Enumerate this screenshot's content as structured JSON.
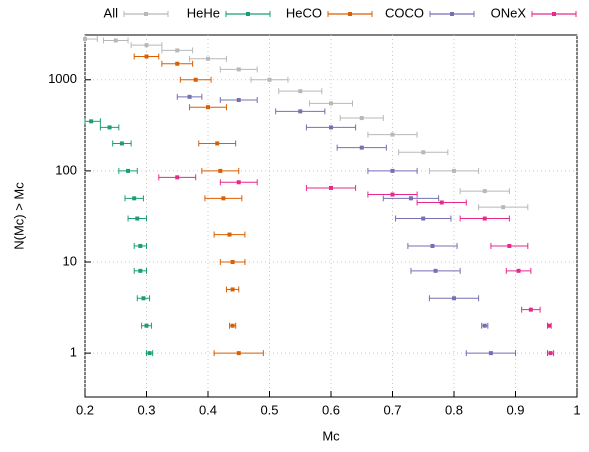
{
  "chart_data": {
    "type": "errorbar-scatter",
    "xlabel": "Mc",
    "ylabel": "N(Mc) > Mc",
    "xlim": [
      0.2,
      1
    ],
    "xticks": [
      0.2,
      0.3,
      0.4,
      0.5,
      0.6,
      0.7,
      0.8,
      0.9,
      1
    ],
    "ylim": [
      0.33,
      3100
    ],
    "yticks": [
      1,
      10,
      100,
      1000
    ],
    "yscale": "log",
    "grid": true,
    "legend": "top",
    "series": [
      {
        "name": "All",
        "color": "#b8b8b8",
        "x": [
          0.2,
          0.25,
          0.3,
          0.35,
          0.4,
          0.45,
          0.5,
          0.55,
          0.6,
          0.65,
          0.7,
          0.75,
          0.8,
          0.85,
          0.88
        ],
        "values": [
          2800,
          2700,
          2400,
          2100,
          1700,
          1300,
          1000,
          750,
          550,
          380,
          250,
          160,
          100,
          60,
          40
        ],
        "xerr": [
          0.02,
          0.02,
          0.025,
          0.025,
          0.03,
          0.03,
          0.03,
          0.035,
          0.035,
          0.035,
          0.04,
          0.04,
          0.04,
          0.04,
          0.04
        ]
      },
      {
        "name": "HeHe",
        "color": "#1b9e77",
        "x": [
          0.21,
          0.24,
          0.26,
          0.27,
          0.28,
          0.285,
          0.29,
          0.29,
          0.295,
          0.3,
          0.305
        ],
        "values": [
          350,
          300,
          200,
          100,
          50,
          30,
          15,
          8,
          4,
          2,
          1
        ],
        "xerr": [
          0.015,
          0.015,
          0.015,
          0.015,
          0.015,
          0.015,
          0.01,
          0.01,
          0.01,
          0.008,
          0.005
        ]
      },
      {
        "name": "HeCO",
        "color": "#d95f02",
        "x": [
          0.3,
          0.35,
          0.38,
          0.4,
          0.415,
          0.42,
          0.425,
          0.435,
          0.44,
          0.44,
          0.44,
          0.45
        ],
        "values": [
          1800,
          1500,
          1000,
          500,
          200,
          100,
          50,
          20,
          10,
          5,
          2,
          1
        ],
        "xerr": [
          0.02,
          0.025,
          0.025,
          0.03,
          0.03,
          0.03,
          0.03,
          0.025,
          0.02,
          0.01,
          0.005,
          0.04
        ]
      },
      {
        "name": "COCO",
        "color": "#7570b3",
        "x": [
          0.37,
          0.45,
          0.55,
          0.6,
          0.65,
          0.7,
          0.73,
          0.75,
          0.765,
          0.77,
          0.8,
          0.85,
          0.86
        ],
        "values": [
          650,
          600,
          450,
          300,
          180,
          100,
          50,
          30,
          15,
          8,
          4,
          2,
          1
        ],
        "xerr": [
          0.02,
          0.03,
          0.04,
          0.04,
          0.04,
          0.04,
          0.045,
          0.045,
          0.04,
          0.04,
          0.04,
          0.005,
          0.04
        ]
      },
      {
        "name": "ONeX",
        "color": "#e7298a",
        "x": [
          0.35,
          0.45,
          0.6,
          0.7,
          0.78,
          0.85,
          0.89,
          0.905,
          0.925,
          0.955,
          0.957
        ],
        "values": [
          85,
          75,
          65,
          55,
          45,
          30,
          15,
          8,
          3,
          2,
          1
        ],
        "xerr": [
          0.03,
          0.03,
          0.04,
          0.04,
          0.04,
          0.04,
          0.03,
          0.02,
          0.015,
          0.003,
          0.005
        ]
      }
    ]
  }
}
